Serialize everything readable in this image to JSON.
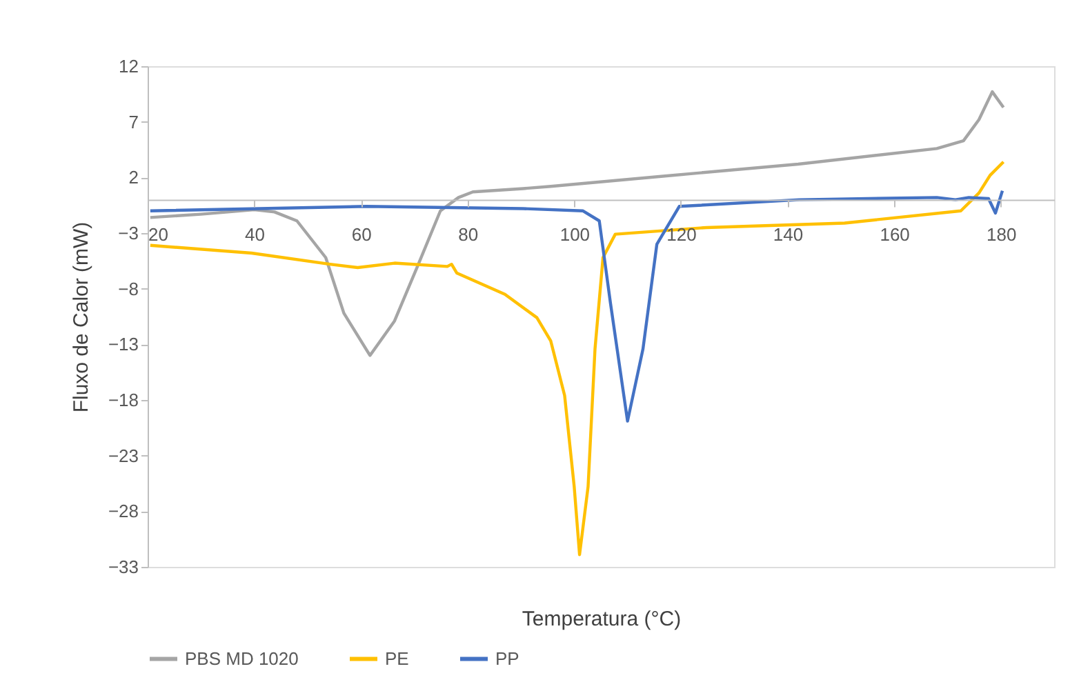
{
  "chart_data": {
    "type": "line",
    "xlabel": "Temperatura (°C)",
    "ylabel": "Fluxo de Calor (mW)",
    "xlim": [
      20,
      190
    ],
    "xticks": [
      20,
      40,
      60,
      80,
      100,
      120,
      140,
      160,
      180
    ],
    "ylim": [
      -33,
      12
    ],
    "yticks": [
      -33,
      -28,
      -23,
      -18,
      -13,
      -8,
      -3,
      2,
      7,
      12
    ],
    "grid": false,
    "legend": "bottom",
    "marker": "none",
    "line_style": "solid",
    "series": [
      {
        "name": "PBS MD 1020",
        "color": "#a5a5a5",
        "x": [
          20.5,
          30,
          40,
          43.8,
          48,
          53.4,
          56.8,
          61.7,
          66.3,
          70.6,
          74.9,
          78.3,
          81,
          90.4,
          95.6,
          116.3,
          142,
          168,
          173,
          175.9,
          178.4,
          180.5
        ],
        "values": [
          -1.6,
          -1.3,
          -0.9,
          -1.1,
          -1.9,
          -5.2,
          -10.2,
          -14,
          -10.9,
          -6,
          -1,
          0.2,
          0.7,
          1,
          1.2,
          2.1,
          3.2,
          4.6,
          5.3,
          7.2,
          9.7,
          8.3
        ]
      },
      {
        "name": "PE",
        "color": "#ffc000",
        "x": [
          20.5,
          39.5,
          54.2,
          59.4,
          66.3,
          76.2,
          77,
          78,
          87,
          93,
          95.6,
          98.2,
          100,
          101,
          102.6,
          103.9,
          105.4,
          107.7,
          124.8,
          150.7,
          172.5,
          175.9,
          178,
          180.5
        ],
        "values": [
          -4.1,
          -4.8,
          -5.8,
          -6.1,
          -5.7,
          -6,
          -5.8,
          -6.6,
          -8.5,
          -10.6,
          -12.7,
          -17.6,
          -25.8,
          -31.9,
          -25.8,
          -13.4,
          -5.2,
          -3.1,
          -2.5,
          -2.1,
          -1,
          0.6,
          2.2,
          3.4
        ]
      },
      {
        "name": "PP",
        "color": "#4472c4",
        "x": [
          20.5,
          61,
          90.4,
          101.6,
          104.7,
          106.8,
          110,
          112.9,
          115.5,
          119.7,
          142.2,
          168,
          171.5,
          174,
          177.7,
          179,
          180.3
        ],
        "values": [
          -1,
          -0.6,
          -0.8,
          -1,
          -1.9,
          -9.3,
          -19.9,
          -13.4,
          -4,
          -0.6,
          0,
          0.2,
          0,
          0.2,
          0.1,
          -1.2,
          0.8
        ]
      }
    ]
  }
}
